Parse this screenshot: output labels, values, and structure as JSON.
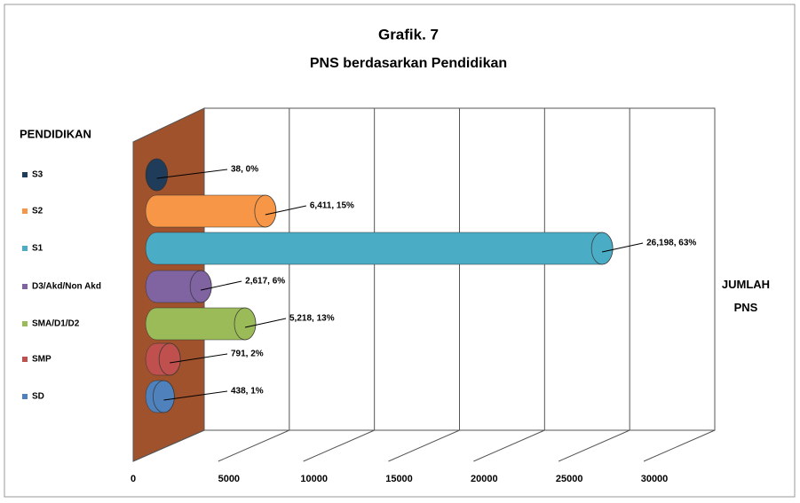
{
  "chart_data": {
    "type": "bar",
    "orientation": "horizontal",
    "shape": "cylinder",
    "title": "Grafik. 7",
    "subtitle": "PNS berdasarkan Pendidikan",
    "legend_title": "PENDIDIKAN",
    "x_label": "JUMLAH PNS",
    "categories": [
      "S3",
      "S2",
      "S1",
      "D3/Akd/Non Akd",
      "SMA/D1/D2",
      "SMP",
      "SD"
    ],
    "values": [
      38,
      6411,
      26198,
      2617,
      5218,
      791,
      438
    ],
    "value_labels": [
      "38, 0%",
      "6,411, 15%",
      "26,198, 63%",
      "2,617, 6%",
      "5,218, 13%",
      "791, 2%",
      "438, 1%"
    ],
    "colors": [
      "#1f3c5a",
      "#f79646",
      "#4bacc6",
      "#8064a2",
      "#9bbb59",
      "#c0504d",
      "#4f81bd"
    ],
    "xlim": [
      0,
      30000
    ],
    "xticks": [
      0,
      5000,
      10000,
      15000,
      20000,
      25000,
      30000
    ],
    "grid": true,
    "legend": "left"
  }
}
